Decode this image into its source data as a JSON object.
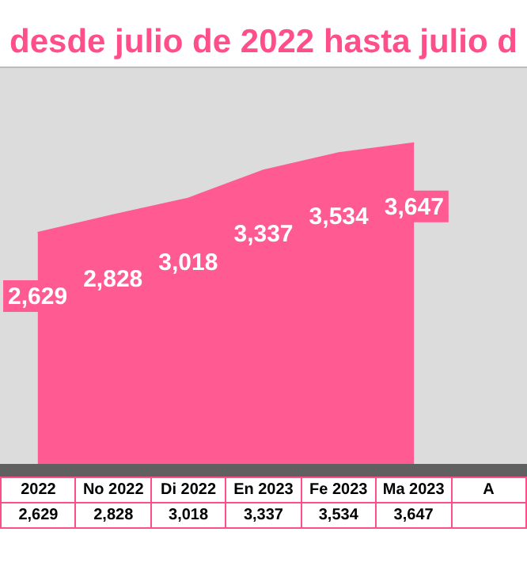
{
  "chart_data": {
    "type": "area",
    "title": "desde julio de 2022 hasta julio d",
    "categories": [
      "2022",
      "No 2022",
      "Di 2022",
      "En 2023",
      "Fe 2023",
      "Ma 2023",
      "A"
    ],
    "series": [
      {
        "color": "#ff5a92",
        "values": [
          2629,
          2828,
          3018,
          3337,
          3534,
          3647,
          null
        ],
        "value_labels": [
          "2,629",
          "2,828",
          "3,018",
          "3,337",
          "3,534",
          "3,647",
          null
        ]
      }
    ],
    "legend": false
  }
}
